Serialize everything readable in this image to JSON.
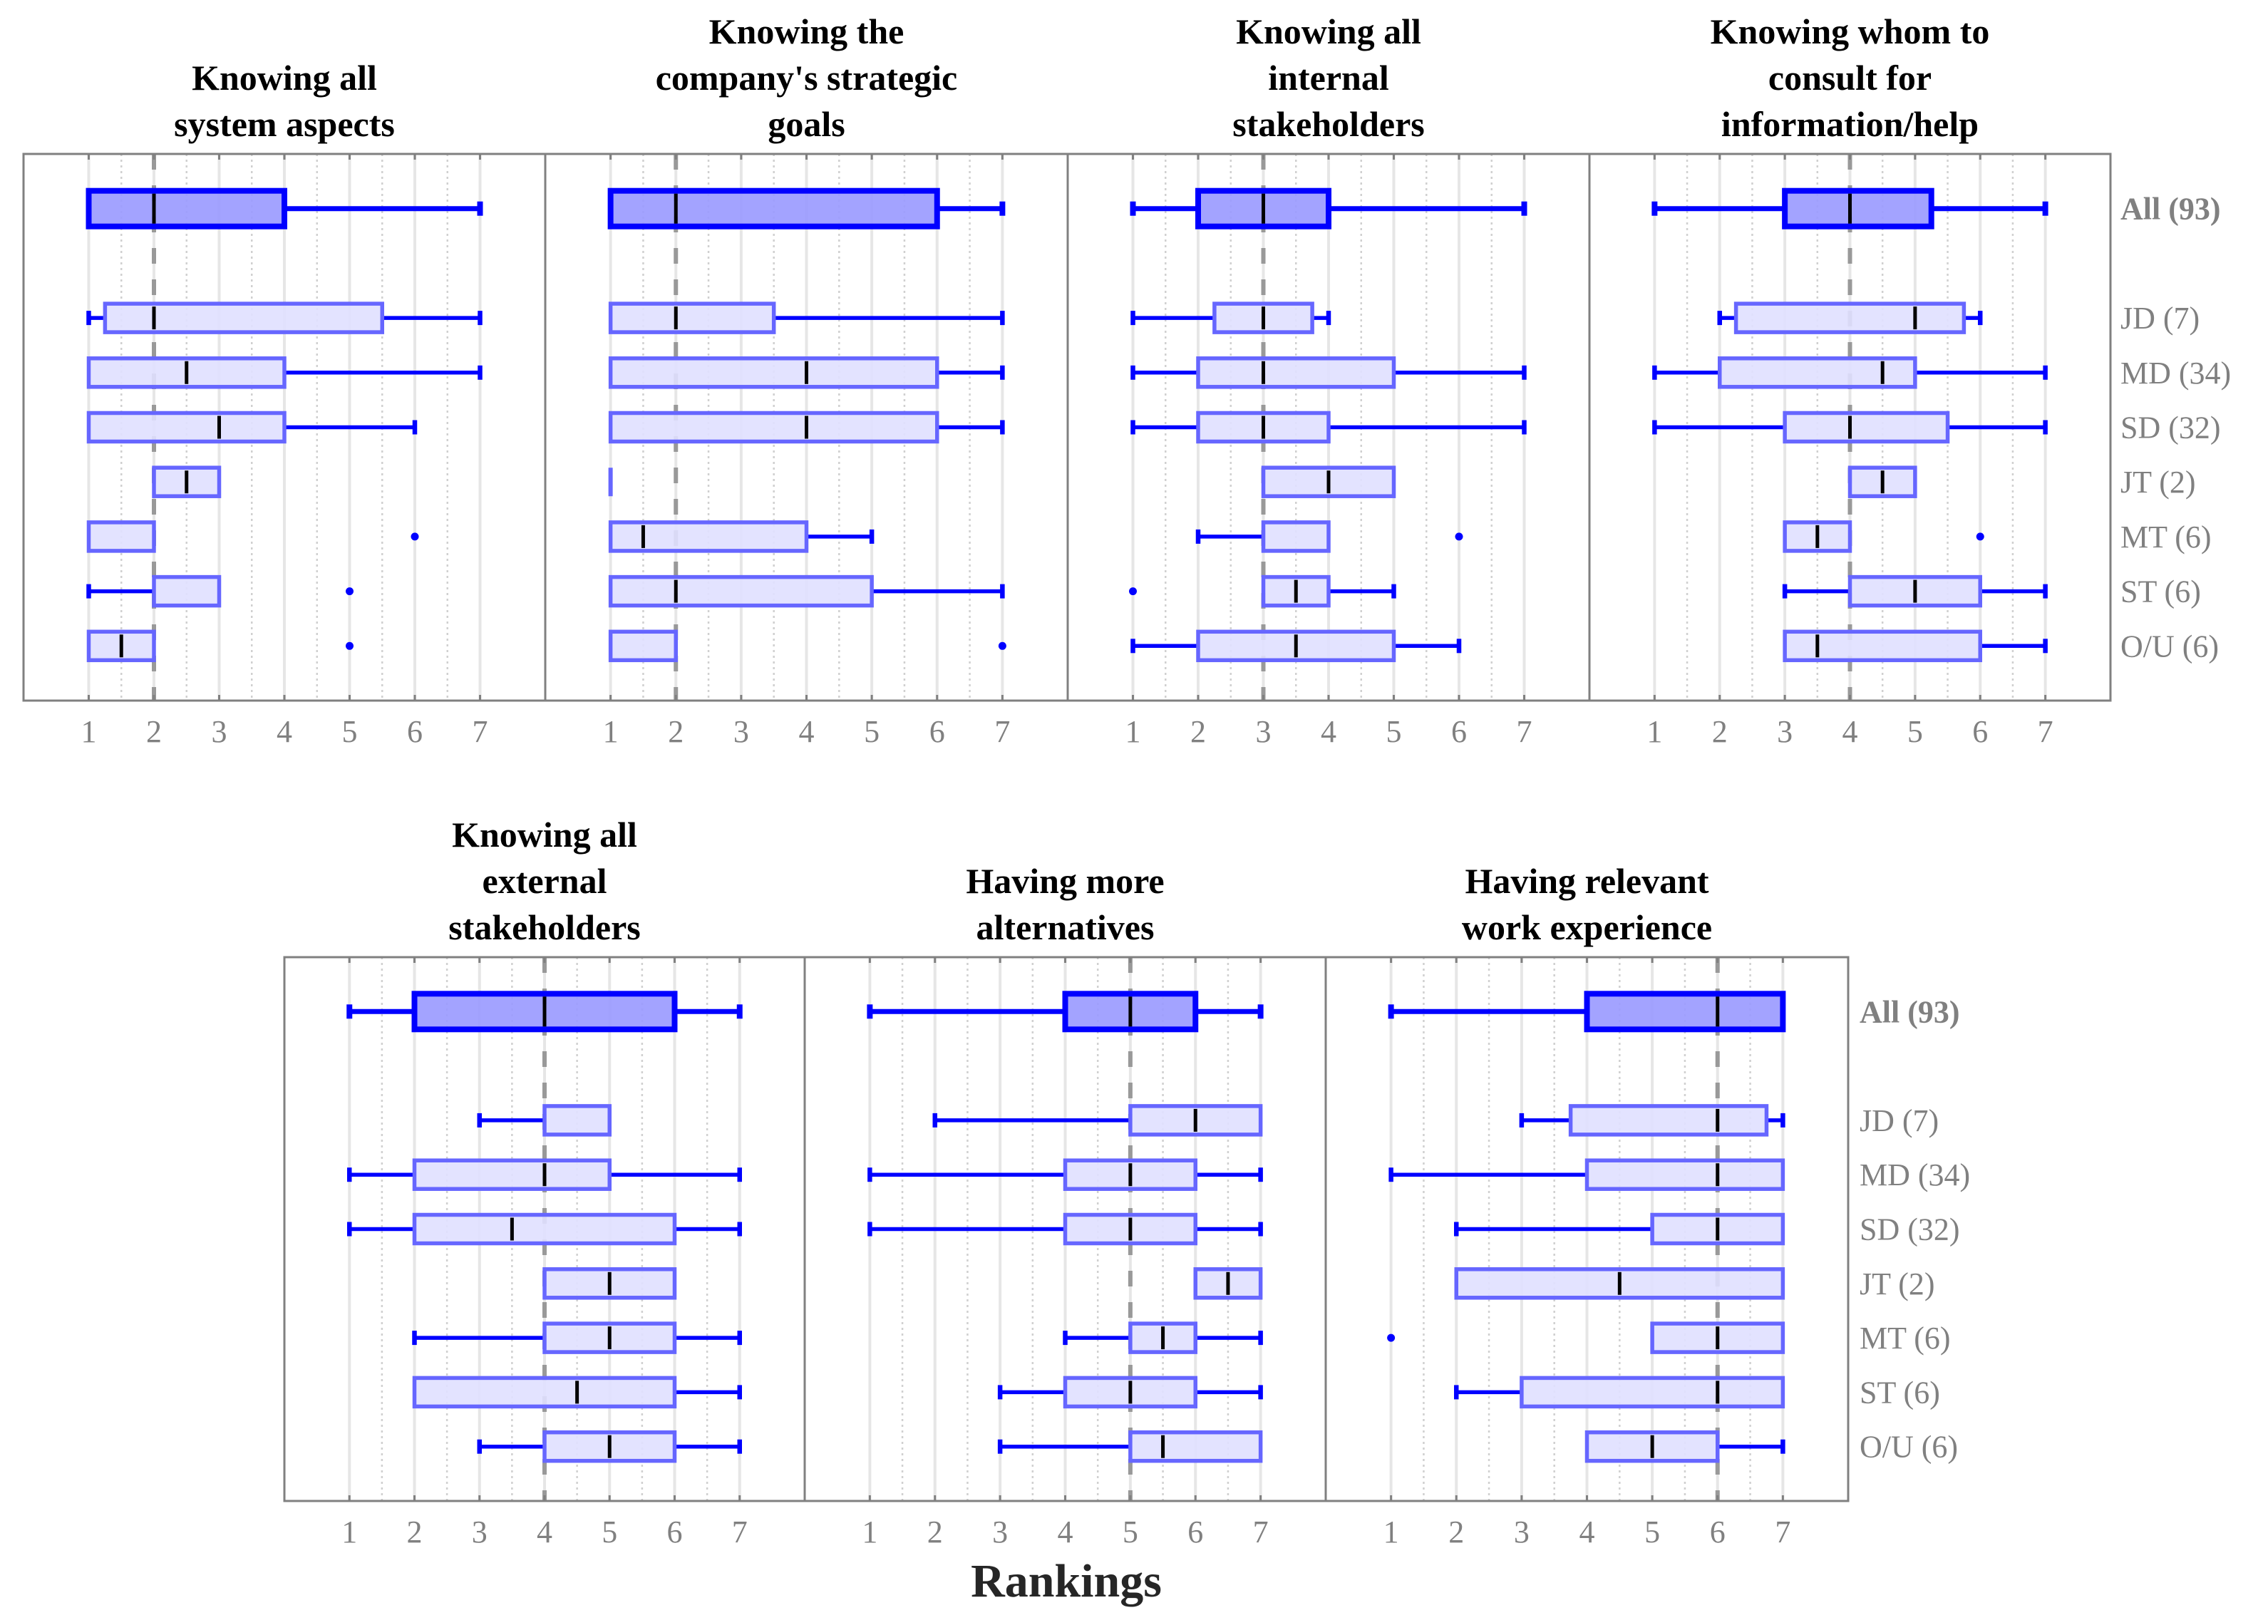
{
  "chart_data": {
    "type": "boxplot",
    "xlabel": "Rankings",
    "xlim": [
      0,
      8
    ],
    "xticks": [
      "1",
      "2",
      "3",
      "4",
      "5",
      "6",
      "7"
    ],
    "grid": "major solid, minor dotted at 0.5",
    "group_labels": [
      "All (93)",
      "JD (7)",
      "MD (34)",
      "SD (32)",
      "JT (2)",
      "MT (6)",
      "ST (6)",
      "O/U (6)"
    ],
    "colors": {
      "all_fill": "#9999ff",
      "all_stroke": "#0000ff",
      "group_fill": "#e0e0ff",
      "group_stroke": "#6666ff",
      "whisker": "#0000ff",
      "median": "#000000",
      "reference": "#999999"
    },
    "panels": [
      {
        "title": [
          "Knowing all",
          "system aspects"
        ],
        "reference": 2,
        "boxes": [
          {
            "wl": 1,
            "q1": 1,
            "med": 2,
            "q3": 4,
            "wh": 7,
            "out": []
          },
          {
            "wl": 1,
            "q1": 1.25,
            "med": 2,
            "q3": 5.5,
            "wh": 7,
            "out": []
          },
          {
            "wl": 1,
            "q1": 1,
            "med": 2.5,
            "q3": 4,
            "wh": 7,
            "out": []
          },
          {
            "wl": 1,
            "q1": 1,
            "med": 3,
            "q3": 4,
            "wh": 6,
            "out": []
          },
          {
            "wl": 2,
            "q1": 2,
            "med": 2.5,
            "q3": 3,
            "wh": 3,
            "out": []
          },
          {
            "wl": 1,
            "q1": 1,
            "med": 2,
            "q3": 2,
            "wh": 2,
            "out": [
              6
            ]
          },
          {
            "wl": 1,
            "q1": 2,
            "med": 2,
            "q3": 3,
            "wh": 3,
            "out": [
              5
            ]
          },
          {
            "wl": 1,
            "q1": 1,
            "med": 1.5,
            "q3": 2,
            "wh": 2,
            "out": [
              5
            ]
          }
        ]
      },
      {
        "title": [
          "Knowing the",
          "company's strategic",
          "goals"
        ],
        "reference": 2,
        "boxes": [
          {
            "wl": 1,
            "q1": 1,
            "med": 2,
            "q3": 6,
            "wh": 7,
            "out": []
          },
          {
            "wl": 1,
            "q1": 1,
            "med": 2,
            "q3": 3.5,
            "wh": 7,
            "out": []
          },
          {
            "wl": 1,
            "q1": 1,
            "med": 4,
            "q3": 6,
            "wh": 7,
            "out": []
          },
          {
            "wl": 1,
            "q1": 1,
            "med": 4,
            "q3": 6,
            "wh": 7,
            "out": []
          },
          {
            "wl": 1,
            "q1": 1,
            "med": 1,
            "q3": 1,
            "wh": 1,
            "out": []
          },
          {
            "wl": 1,
            "q1": 1,
            "med": 1.5,
            "q3": 4,
            "wh": 5,
            "out": []
          },
          {
            "wl": 1,
            "q1": 1,
            "med": 2,
            "q3": 5,
            "wh": 7,
            "out": []
          },
          {
            "wl": 1,
            "q1": 1,
            "med": 2,
            "q3": 2,
            "wh": 2,
            "out": [
              7
            ]
          }
        ]
      },
      {
        "title": [
          "Knowing all",
          "internal",
          "stakeholders"
        ],
        "reference": 3,
        "boxes": [
          {
            "wl": 1,
            "q1": 2,
            "med": 3,
            "q3": 4,
            "wh": 7,
            "out": []
          },
          {
            "wl": 1,
            "q1": 2.25,
            "med": 3,
            "q3": 3.75,
            "wh": 4,
            "out": []
          },
          {
            "wl": 1,
            "q1": 2,
            "med": 3,
            "q3": 5,
            "wh": 7,
            "out": []
          },
          {
            "wl": 1,
            "q1": 2,
            "med": 3,
            "q3": 4,
            "wh": 7,
            "out": []
          },
          {
            "wl": 3,
            "q1": 3,
            "med": 4,
            "q3": 5,
            "wh": 5,
            "out": []
          },
          {
            "wl": 2,
            "q1": 3,
            "med": 3,
            "q3": 4,
            "wh": 4,
            "out": [
              6
            ]
          },
          {
            "wl": 3,
            "q1": 3,
            "med": 3.5,
            "q3": 4,
            "wh": 5,
            "out": [
              1
            ]
          },
          {
            "wl": 1,
            "q1": 2,
            "med": 3.5,
            "q3": 5,
            "wh": 6,
            "out": []
          }
        ]
      },
      {
        "title": [
          "Knowing whom to",
          "consult for",
          "information/help"
        ],
        "reference": 4,
        "boxes": [
          {
            "wl": 1,
            "q1": 3,
            "med": 4,
            "q3": 5.25,
            "wh": 7,
            "out": []
          },
          {
            "wl": 2,
            "q1": 2.25,
            "med": 5,
            "q3": 5.75,
            "wh": 6,
            "out": []
          },
          {
            "wl": 1,
            "q1": 2,
            "med": 4.5,
            "q3": 5,
            "wh": 7,
            "out": []
          },
          {
            "wl": 1,
            "q1": 3,
            "med": 4,
            "q3": 5.5,
            "wh": 7,
            "out": []
          },
          {
            "wl": 4,
            "q1": 4,
            "med": 4.5,
            "q3": 5,
            "wh": 5,
            "out": []
          },
          {
            "wl": 3,
            "q1": 3,
            "med": 3.5,
            "q3": 4,
            "wh": 4,
            "out": [
              6
            ]
          },
          {
            "wl": 3,
            "q1": 4,
            "med": 5,
            "q3": 6,
            "wh": 7,
            "out": []
          },
          {
            "wl": 3,
            "q1": 3,
            "med": 3.5,
            "q3": 6,
            "wh": 7,
            "out": []
          }
        ]
      },
      {
        "title": [
          "Knowing all",
          "external",
          "stakeholders"
        ],
        "reference": 4,
        "boxes": [
          {
            "wl": 1,
            "q1": 2,
            "med": 4,
            "q3": 6,
            "wh": 7,
            "out": []
          },
          {
            "wl": 3,
            "q1": 4,
            "med": 4,
            "q3": 5,
            "wh": 5,
            "out": []
          },
          {
            "wl": 1,
            "q1": 2,
            "med": 4,
            "q3": 5,
            "wh": 7,
            "out": []
          },
          {
            "wl": 1,
            "q1": 2,
            "med": 3.5,
            "q3": 6,
            "wh": 7,
            "out": []
          },
          {
            "wl": 4,
            "q1": 4,
            "med": 5,
            "q3": 6,
            "wh": 6,
            "out": []
          },
          {
            "wl": 2,
            "q1": 4,
            "med": 5,
            "q3": 6,
            "wh": 7,
            "out": []
          },
          {
            "wl": 2,
            "q1": 2,
            "med": 4.5,
            "q3": 6,
            "wh": 7,
            "out": []
          },
          {
            "wl": 3,
            "q1": 4,
            "med": 5,
            "q3": 6,
            "wh": 7,
            "out": []
          }
        ]
      },
      {
        "title": [
          "Having more",
          "alternatives"
        ],
        "reference": 5,
        "boxes": [
          {
            "wl": 1,
            "q1": 4,
            "med": 5,
            "q3": 6,
            "wh": 7,
            "out": []
          },
          {
            "wl": 2,
            "q1": 5,
            "med": 6,
            "q3": 7,
            "wh": 7,
            "out": []
          },
          {
            "wl": 1,
            "q1": 4,
            "med": 5,
            "q3": 6,
            "wh": 7,
            "out": []
          },
          {
            "wl": 1,
            "q1": 4,
            "med": 5,
            "q3": 6,
            "wh": 7,
            "out": []
          },
          {
            "wl": 6,
            "q1": 6,
            "med": 6.5,
            "q3": 7,
            "wh": 7,
            "out": []
          },
          {
            "wl": 4,
            "q1": 5,
            "med": 5.5,
            "q3": 6,
            "wh": 7,
            "out": []
          },
          {
            "wl": 3,
            "q1": 4,
            "med": 5,
            "q3": 6,
            "wh": 7,
            "out": []
          },
          {
            "wl": 3,
            "q1": 5,
            "med": 5.5,
            "q3": 7,
            "wh": 7,
            "out": []
          }
        ]
      },
      {
        "title": [
          "Having relevant",
          "work experience"
        ],
        "reference": 6,
        "boxes": [
          {
            "wl": 1,
            "q1": 4,
            "med": 6,
            "q3": 7,
            "wh": 7,
            "out": []
          },
          {
            "wl": 3,
            "q1": 3.75,
            "med": 6,
            "q3": 6.75,
            "wh": 7,
            "out": []
          },
          {
            "wl": 1,
            "q1": 4,
            "med": 6,
            "q3": 7,
            "wh": 7,
            "out": []
          },
          {
            "wl": 2,
            "q1": 5,
            "med": 6,
            "q3": 7,
            "wh": 7,
            "out": []
          },
          {
            "wl": 2,
            "q1": 2,
            "med": 4.5,
            "q3": 7,
            "wh": 7,
            "out": []
          },
          {
            "wl": 5,
            "q1": 5,
            "med": 6,
            "q3": 7,
            "wh": 7,
            "out": [
              1
            ]
          },
          {
            "wl": 2,
            "q1": 3,
            "med": 6,
            "q3": 7,
            "wh": 7,
            "out": []
          },
          {
            "wl": 4,
            "q1": 4,
            "med": 5,
            "q3": 6,
            "wh": 7,
            "out": []
          }
        ]
      }
    ]
  }
}
